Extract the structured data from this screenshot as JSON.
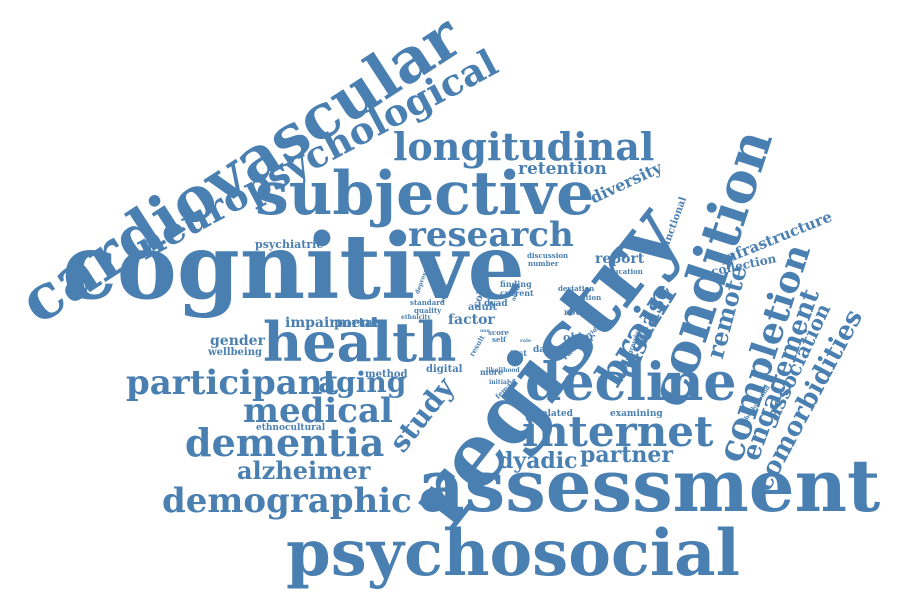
{
  "color": "#4a7fb1",
  "words": [
    "cardiovascular",
    "neuropsychological",
    "cognitive",
    "subjective",
    "longitudinal",
    "research",
    "retention",
    "diversity",
    "registry",
    "condition",
    "health",
    "brain",
    "decline",
    "internet",
    "assessment",
    "psychosocial",
    "demographic",
    "alzheimer",
    "dementia",
    "medical",
    "participant",
    "aging",
    "study",
    "dyadic",
    "partner",
    "completion",
    "engagement",
    "comorbidities",
    "association",
    "remote",
    "disease",
    "infrastructure",
    "collection",
    "functional",
    "report",
    "education",
    "psychiatric",
    "impairment",
    "portal",
    "gender",
    "wellbeing",
    "ethnocultural",
    "method",
    "digital",
    "factor",
    "cohort",
    "adult",
    "dyad",
    "finding",
    "current",
    "discussion",
    "number",
    "standard",
    "quality",
    "ethnicity",
    "symptom",
    "depressive",
    "older",
    "race",
    "data",
    "test",
    "more",
    "result",
    "score",
    "self",
    "deviation",
    "cognition",
    "novel",
    "evidence",
    "regression",
    "background",
    "examining",
    "related",
    "female",
    "likelihood",
    "initial",
    "adrd",
    "use",
    "role"
  ]
}
